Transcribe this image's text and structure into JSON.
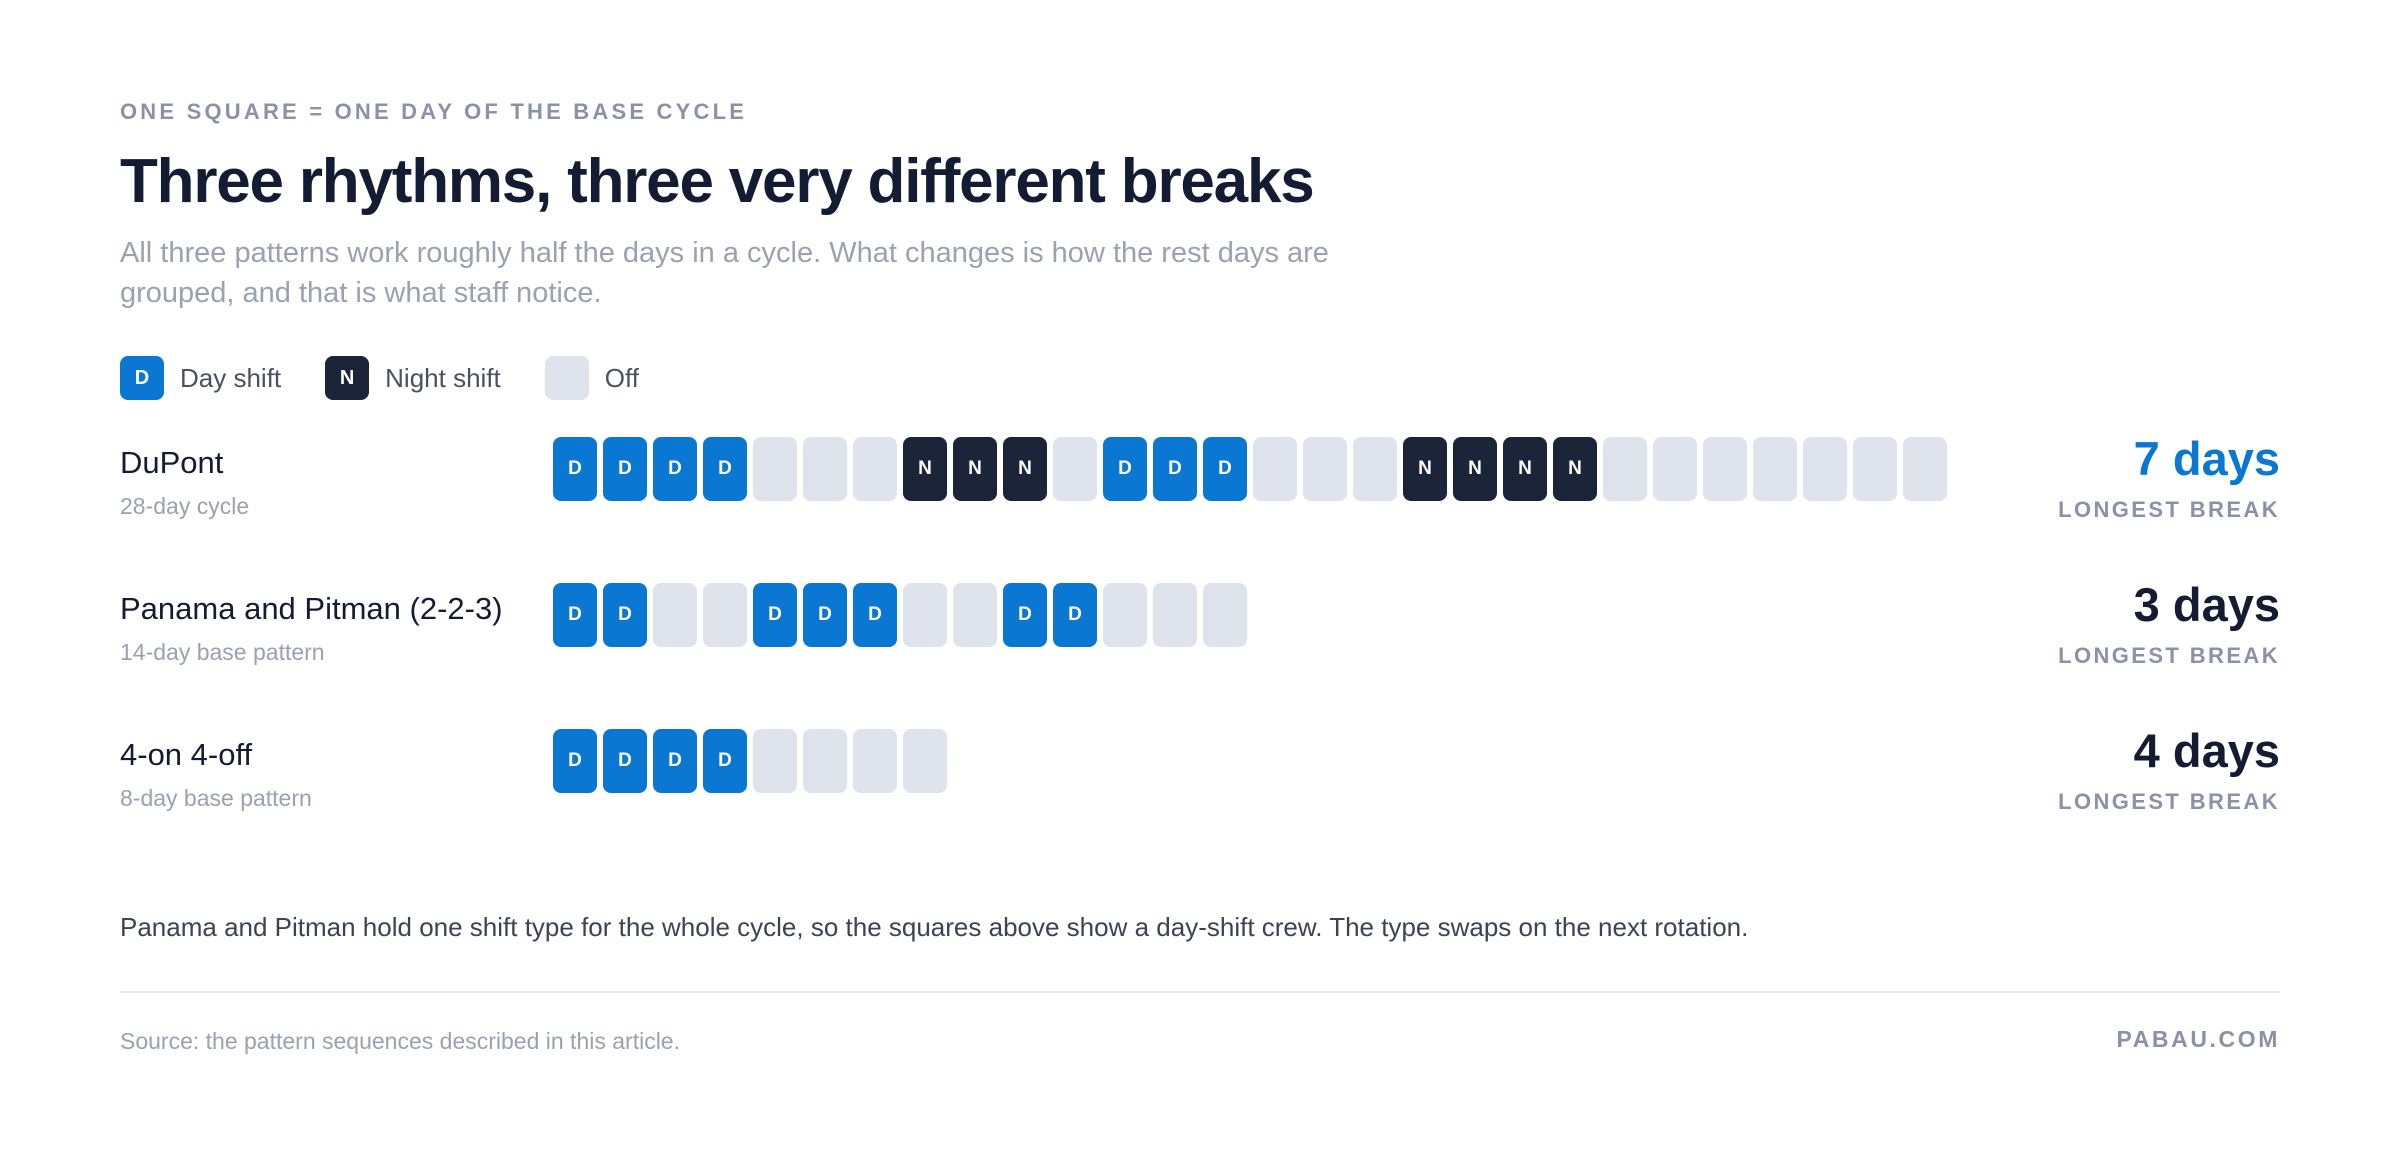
{
  "header": {
    "kicker": "ONE SQUARE = ONE DAY OF THE BASE CYCLE",
    "title": "Three rhythms, three very different breaks",
    "subtitle": "All three patterns work roughly half the days in a cycle. What changes is how the rest days are grouped, and that is what staff notice."
  },
  "legend": {
    "day": {
      "letter": "D",
      "label": "Day shift"
    },
    "night": {
      "letter": "N",
      "label": "Night shift"
    },
    "off": {
      "letter": "",
      "label": "Off"
    }
  },
  "colors": {
    "day": "#0a78d2",
    "night": "#1b2438",
    "off": "#dfe3ec",
    "accent": "#0a78d2"
  },
  "rows": [
    {
      "name": "DuPont",
      "sub": "28-day cycle",
      "days": [
        "D",
        "D",
        "D",
        "D",
        "O",
        "O",
        "O",
        "N",
        "N",
        "N",
        "O",
        "D",
        "D",
        "D",
        "O",
        "O",
        "O",
        "N",
        "N",
        "N",
        "N",
        "O",
        "O",
        "O",
        "O",
        "O",
        "O",
        "O"
      ],
      "stat_value": "7 days",
      "stat_label": "LONGEST BREAK",
      "highlight": true
    },
    {
      "name": "Panama and Pitman (2-2-3)",
      "sub": "14-day base pattern",
      "days": [
        "D",
        "D",
        "O",
        "O",
        "D",
        "D",
        "D",
        "O",
        "O",
        "D",
        "D",
        "O",
        "O",
        "O"
      ],
      "stat_value": "3 days",
      "stat_label": "LONGEST BREAK",
      "highlight": false
    },
    {
      "name": "4-on 4-off",
      "sub": "8-day base pattern",
      "days": [
        "D",
        "D",
        "D",
        "D",
        "O",
        "O",
        "O",
        "O"
      ],
      "stat_value": "4 days",
      "stat_label": "LONGEST BREAK",
      "highlight": false
    }
  ],
  "note": "Panama and Pitman hold one shift type for the whole cycle, so the squares above show a day-shift crew. The type swaps on the next rotation.",
  "footer": {
    "source": "Source: the pattern sequences described in this article.",
    "brand": "PABAU.COM"
  }
}
